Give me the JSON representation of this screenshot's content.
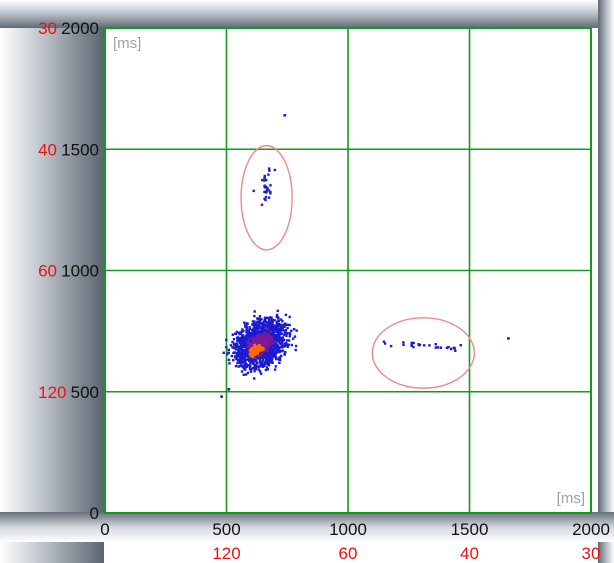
{
  "chart_data": {
    "type": "scatter",
    "title": "",
    "xlabel": "[ms]",
    "ylabel": "[ms]",
    "xlim": [
      0,
      2000
    ],
    "ylim": [
      0,
      2000
    ],
    "grid": true,
    "x_ticks": [
      {
        "value": 0,
        "label": "0"
      },
      {
        "value": 500,
        "label": "500"
      },
      {
        "value": 1000,
        "label": "1000"
      },
      {
        "value": 1500,
        "label": "1500"
      },
      {
        "value": 2000,
        "label": "2000"
      }
    ],
    "y_ticks": [
      {
        "value": 0,
        "label": "0"
      },
      {
        "value": 500,
        "label": "500"
      },
      {
        "value": 1000,
        "label": "1000"
      },
      {
        "value": 1500,
        "label": "1500"
      },
      {
        "value": 2000,
        "label": "2000"
      }
    ],
    "secondary_x_ticks": [
      {
        "value": 500,
        "label": "120"
      },
      {
        "value": 1000,
        "label": "60"
      },
      {
        "value": 1500,
        "label": "40"
      },
      {
        "value": 2000,
        "label": "30"
      }
    ],
    "secondary_y_ticks": [
      {
        "value": 500,
        "label": "120"
      },
      {
        "value": 1000,
        "label": "60"
      },
      {
        "value": 1500,
        "label": "40"
      },
      {
        "value": 2000,
        "label": "30"
      }
    ],
    "clusters": [
      {
        "center": [
          640,
          700
        ],
        "spread": [
          55,
          75
        ],
        "angle": 38,
        "density": "high"
      },
      {
        "center": [
          665,
          1330
        ],
        "spread": [
          18,
          70
        ],
        "angle": 0,
        "density": "low"
      },
      {
        "center": [
          1320,
          690
        ],
        "spread": [
          95,
          12
        ],
        "angle": -5,
        "density": "low"
      }
    ],
    "outliers": [
      [
        740,
        1640
      ],
      [
        1660,
        720
      ],
      [
        510,
        510
      ],
      [
        480,
        480
      ]
    ],
    "annotations": [
      {
        "type": "ellipse",
        "center": [
          665,
          1300
        ],
        "radii": [
          105,
          215
        ]
      },
      {
        "type": "ellipse",
        "center": [
          1310,
          660
        ],
        "radii": [
          210,
          145
        ]
      }
    ],
    "colors": {
      "grid": "#139b1c",
      "tick_primary": "#111111",
      "tick_secondary": "#ee1111",
      "points_low": "#1b1bd0",
      "points_mid": "#7a1a9a",
      "points_high": "#ff6a00",
      "annotation": "#ee8a8a"
    }
  }
}
